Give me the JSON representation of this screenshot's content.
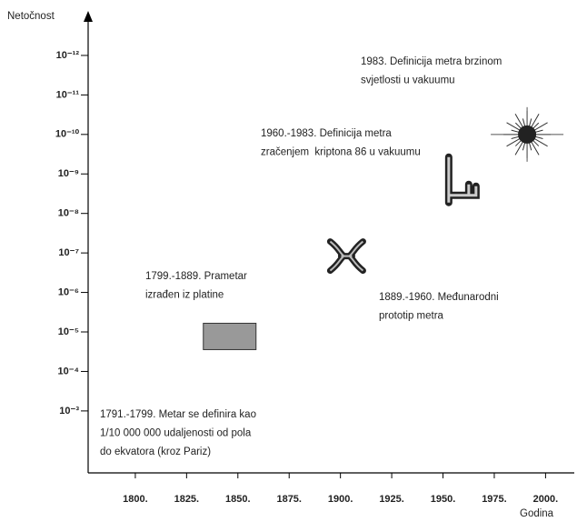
{
  "chart_data": {
    "type": "scatter",
    "y_label": "Netočnost",
    "x_label": "Godina",
    "x": [
      1846,
      1903,
      1959,
      1991
    ],
    "values": [
      1.3e-05,
      1.2e-07,
      1.2e-09,
      1e-10
    ],
    "xlim": [
      1777,
      2014
    ],
    "ylim": [
      0.037,
      8.3e-14
    ],
    "log_y": true,
    "xticks": [
      {
        "value": 1800,
        "label": "1800."
      },
      {
        "value": 1825,
        "label": "1825."
      },
      {
        "value": 1850,
        "label": "1850."
      },
      {
        "value": 1875,
        "label": "1875."
      },
      {
        "value": 1900,
        "label": "1900."
      },
      {
        "value": 1925,
        "label": "1925."
      },
      {
        "value": 1950,
        "label": "1950."
      },
      {
        "value": 1975,
        "label": "1975."
      },
      {
        "value": 2000,
        "label": "2000."
      }
    ],
    "yticks": [
      {
        "value": 0.001,
        "label": "10⁻³"
      },
      {
        "value": 0.0001,
        "label": "10⁻⁴"
      },
      {
        "value": 1e-05,
        "label": "10⁻⁵"
      },
      {
        "value": 1e-06,
        "label": "10⁻⁶"
      },
      {
        "value": 1e-07,
        "label": "10⁻⁷"
      },
      {
        "value": 1e-08,
        "label": "10⁻⁸"
      },
      {
        "value": 1e-09,
        "label": "10⁻⁹"
      },
      {
        "value": 1e-10,
        "label": "10⁻¹⁰"
      },
      {
        "value": 1e-11,
        "label": "10⁻¹¹"
      },
      {
        "value": 1e-12,
        "label": "10⁻¹²"
      }
    ],
    "annotations": [
      [
        "1983. Definicija metra brzinom",
        "svjetlosti u vakuumu"
      ],
      [
        "1960.-1983. Definicija metra",
        "zračenjem  kriptona 86 u vakuumu"
      ],
      [
        "1799.-1889. Prametar",
        "izrađen iz platine"
      ],
      [
        "1889.-1960. Međunarodni",
        "prototip metra"
      ],
      [
        "1791.-1799. Metar se definira kao",
        "1/10 000 000 udaljenosti od pola",
        "do ekvatora (kroz Pariz)"
      ]
    ]
  }
}
